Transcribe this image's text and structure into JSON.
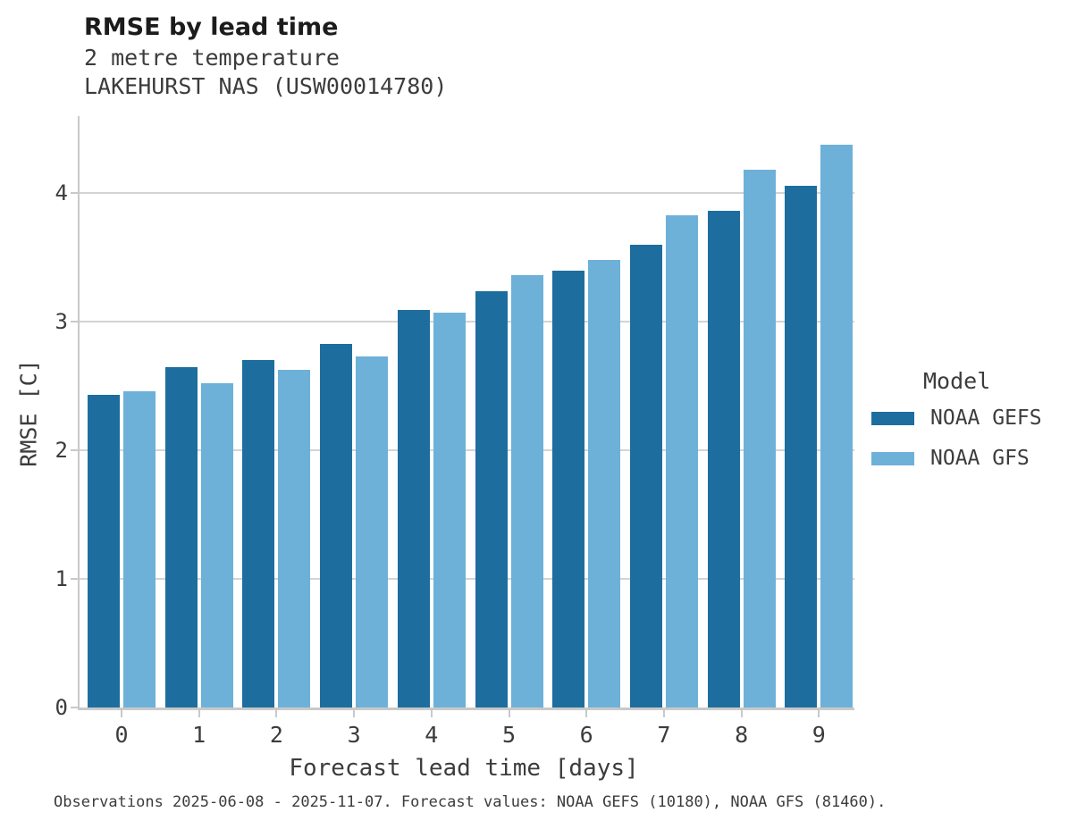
{
  "footer": {
    "text": "Observations 2025-06-08 - 2025-11-07. Forecast values: NOAA GEFS (10180), NOAA GFS (81460)."
  },
  "chart_data": {
    "type": "bar",
    "title": "RMSE by lead time",
    "subtitle": [
      "2 metre temperature",
      "LAKEHURST NAS (USW00014780)"
    ],
    "xlabel": "Forecast lead time [days]",
    "ylabel": "RMSE [C]",
    "categories": [
      "0",
      "1",
      "2",
      "3",
      "4",
      "5",
      "6",
      "7",
      "8",
      "9"
    ],
    "series": [
      {
        "name": "NOAA GEFS",
        "color": "#1d6e9e",
        "values": [
          2.43,
          2.65,
          2.7,
          2.83,
          3.09,
          3.24,
          3.4,
          3.6,
          3.86,
          4.06
        ]
      },
      {
        "name": "NOAA GFS",
        "color": "#6db1d9",
        "values": [
          2.46,
          2.52,
          2.63,
          2.73,
          3.07,
          3.36,
          3.48,
          3.83,
          4.18,
          4.38
        ]
      }
    ],
    "ylim": [
      0,
      4.6
    ],
    "yticks": [
      0,
      1,
      2,
      3,
      4
    ],
    "grid": "horizontal",
    "legend_title": "Model",
    "legend_position": "right"
  }
}
